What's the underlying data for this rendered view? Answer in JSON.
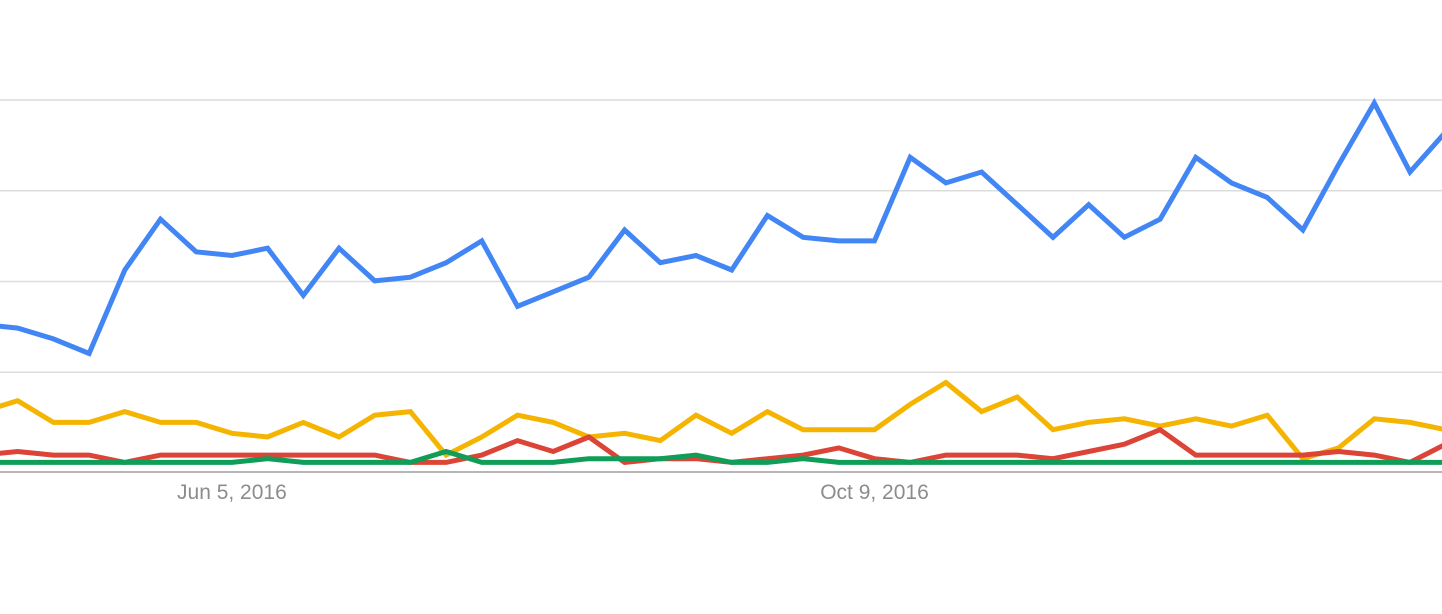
{
  "chart_data": {
    "type": "line",
    "title": "",
    "xlabel": "",
    "ylabel": "",
    "ylim": [
      0,
      100
    ],
    "grid": true,
    "legend": "none",
    "x_tick_labels": [
      {
        "index": 7,
        "label": "Jun 5, 2016"
      },
      {
        "index": 25,
        "label": "Oct 9, 2016"
      }
    ],
    "series": [
      {
        "color": "#4285f4",
        "values": [
          39,
          38,
          35,
          31,
          54,
          68,
          59,
          58,
          60,
          47,
          60,
          51,
          52,
          56,
          62,
          44,
          48,
          52,
          65,
          56,
          58,
          54,
          69,
          63,
          62,
          62,
          85,
          78,
          81,
          72,
          63,
          72,
          63,
          68,
          85,
          78,
          74,
          65,
          83,
          100,
          81,
          92
        ]
      },
      {
        "color": "#f4b400",
        "values": [
          15,
          18,
          12,
          12,
          15,
          12,
          12,
          9,
          8,
          12,
          8,
          14,
          15,
          3,
          8,
          14,
          12,
          8,
          9,
          7,
          14,
          9,
          15,
          10,
          10,
          10,
          17,
          23,
          15,
          19,
          10,
          12,
          13,
          11,
          13,
          11,
          14,
          2,
          5,
          13,
          12,
          10
        ]
      },
      {
        "color": "#db4437",
        "values": [
          3,
          4,
          3,
          3,
          1,
          3,
          3,
          3,
          3,
          3,
          3,
          3,
          1,
          1,
          3,
          7,
          4,
          8,
          1,
          2,
          2,
          1,
          2,
          3,
          5,
          2,
          1,
          3,
          3,
          3,
          2,
          4,
          6,
          10,
          3,
          3,
          3,
          3,
          4,
          3,
          1,
          6
        ]
      },
      {
        "color": "#0f9d58",
        "values": [
          1,
          1,
          1,
          1,
          1,
          1,
          1,
          1,
          2,
          1,
          1,
          1,
          1,
          4,
          1,
          1,
          1,
          2,
          2,
          2,
          3,
          1,
          1,
          2,
          1,
          1,
          1,
          1,
          1,
          1,
          1,
          1,
          1,
          1,
          1,
          1,
          1,
          1,
          1,
          1,
          1,
          1
        ]
      }
    ]
  }
}
